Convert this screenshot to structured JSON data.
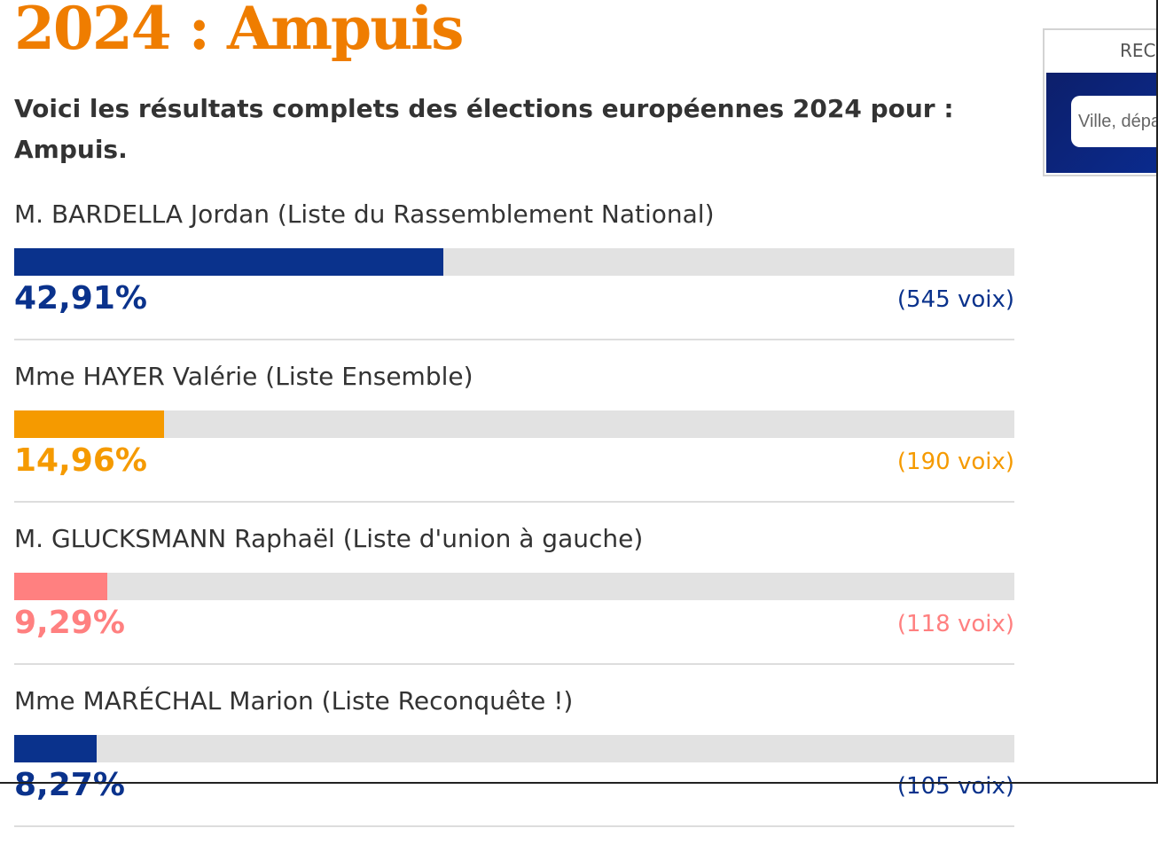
{
  "page": {
    "title": "2024 : Ampuis",
    "intro": "Voici les résultats complets des élections européennes 2024 pour : Ampuis."
  },
  "colors": {
    "title": "#ef7d00",
    "track": "#e2e2e2"
  },
  "results": [
    {
      "candidate": "M. BARDELLA Jordan (Liste du Rassemblement National)",
      "percent_label": "42,91%",
      "percent": 42.91,
      "votes_label": "(545 voix)",
      "color": "#0a328c"
    },
    {
      "candidate": "Mme HAYER Valérie (Liste Ensemble)",
      "percent_label": "14,96%",
      "percent": 14.96,
      "votes_label": "(190 voix)",
      "color": "#f59a00"
    },
    {
      "candidate": "M. GLUCKSMANN Raphaël (Liste d'union à gauche)",
      "percent_label": "9,29%",
      "percent": 9.29,
      "votes_label": "(118 voix)",
      "color": "#ff8080"
    },
    {
      "candidate": "Mme MARÉCHAL Marion (Liste Reconquête !)",
      "percent_label": "8,27%",
      "percent": 8.27,
      "votes_label": "(105 voix)",
      "color": "#0a328c"
    }
  ],
  "search_box": {
    "title": "RECHERCHER",
    "placeholder": "Ville, département"
  }
}
